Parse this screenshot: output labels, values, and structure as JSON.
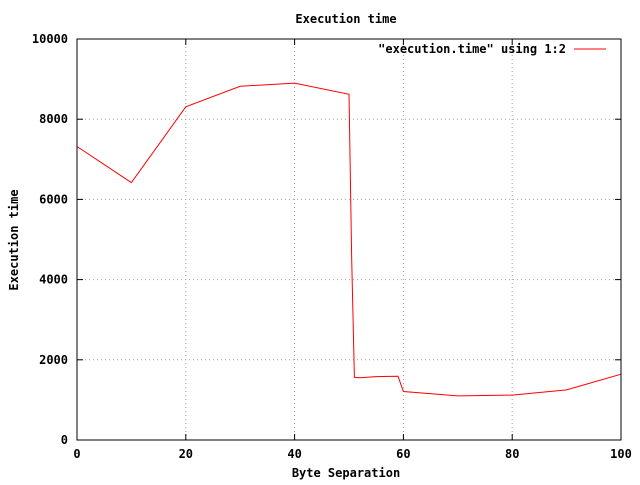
{
  "chart_data": {
    "type": "line",
    "title": "Execution time",
    "xlabel": "Byte Separation",
    "ylabel": "Execution time",
    "xlim": [
      0,
      100
    ],
    "ylim": [
      0,
      10000
    ],
    "x_ticks": [
      0,
      20,
      40,
      60,
      80,
      100
    ],
    "y_ticks": [
      0,
      2000,
      4000,
      6000,
      8000,
      10000
    ],
    "grid": true,
    "legend_position": "top-right",
    "series": [
      {
        "name": "\"execution.time\" using 1:2",
        "color": "#ff0000",
        "x": [
          0,
          10,
          20,
          30,
          40,
          50,
          50.5,
          51,
          52,
          55,
          59,
          60,
          70,
          80,
          90,
          100
        ],
        "y": [
          7320,
          6420,
          8310,
          8820,
          8900,
          8620,
          4500,
          1560,
          1550,
          1580,
          1590,
          1210,
          1100,
          1120,
          1250,
          1640
        ]
      }
    ]
  }
}
